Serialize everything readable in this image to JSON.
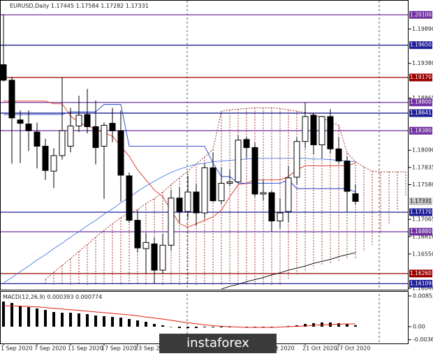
{
  "chart_data": {
    "type": "candlestick",
    "symbol": "EURUSD,Daily",
    "categories": [
      "1 Sep 2020",
      null,
      null,
      null,
      "7 Sep 2020",
      null,
      null,
      null,
      "11 Sep 2020",
      null,
      null,
      null,
      "17 Sep 2020",
      null,
      null,
      null,
      "23 Sep 2020",
      null,
      null,
      null,
      null,
      null,
      null,
      null,
      null,
      null,
      null,
      null,
      null,
      null,
      null,
      null,
      "Oct 2020",
      null,
      null,
      null,
      "21 Oct 2020",
      null,
      null,
      null,
      "27 Oct 2020",
      null,
      null
    ],
    "open": [
      1.1936,
      1.1913,
      1.1854,
      1.1848,
      1.1836,
      1.1815,
      1.1778,
      1.1801,
      1.1815,
      1.1845,
      1.1862,
      1.1844,
      1.1815,
      1.1849,
      1.1838,
      1.1771,
      1.1705,
      1.1663,
      1.167,
      1.1631,
      1.1668,
      1.1738,
      1.1718,
      1.1747,
      1.1716,
      1.1783,
      1.1734,
      1.176,
      1.1762,
      1.1825,
      1.1813,
      1.1744,
      1.1746,
      1.1704,
      1.1718,
      1.1769,
      1.1822,
      1.1861,
      1.1817,
      1.1859,
      1.1811,
      1.1793,
      1.17445
    ],
    "high": [
      1.2011,
      1.1918,
      1.1868,
      1.1868,
      1.185,
      1.1826,
      1.1812,
      1.1917,
      1.1872,
      1.189,
      1.19,
      1.1883,
      1.185,
      1.1872,
      1.1868,
      1.1776,
      1.172,
      1.1686,
      1.168,
      1.1685,
      1.175,
      1.1754,
      1.1771,
      1.1759,
      1.179,
      1.1806,
      1.1784,
      1.178,
      1.1831,
      1.1829,
      1.182,
      1.1765,
      1.1749,
      1.1738,
      1.1786,
      1.1828,
      1.188,
      1.1864,
      1.186,
      1.187,
      1.1828,
      1.18,
      1.17584
    ],
    "low": [
      1.1911,
      1.1789,
      1.179,
      1.1808,
      1.1782,
      1.1765,
      1.1753,
      1.1795,
      1.1806,
      1.1836,
      1.1834,
      1.1788,
      1.1737,
      1.1821,
      1.1733,
      1.1701,
      1.1657,
      1.1626,
      1.1612,
      1.1625,
      1.166,
      1.1702,
      1.1708,
      1.1696,
      1.1708,
      1.1732,
      1.1729,
      1.1756,
      1.176,
      1.1797,
      1.174,
      1.1735,
      1.1688,
      1.1693,
      1.1702,
      1.1758,
      1.1812,
      1.1803,
      1.1797,
      1.1805,
      1.1789,
      1.1718,
      1.17282
    ],
    "close": [
      1.1913,
      1.1857,
      1.1849,
      1.1838,
      1.1815,
      1.1779,
      1.1801,
      1.1838,
      1.1845,
      1.1861,
      1.1844,
      1.1813,
      1.1846,
      1.1838,
      1.1772,
      1.1705,
      1.1664,
      1.1672,
      1.1631,
      1.1668,
      1.1738,
      1.1718,
      1.1747,
      1.1716,
      1.1783,
      1.1734,
      1.176,
      1.1762,
      1.1824,
      1.1813,
      1.1744,
      1.1746,
      1.1704,
      1.1716,
      1.1768,
      1.1822,
      1.1859,
      1.1817,
      1.1859,
      1.1811,
      1.1793,
      1.1748,
      1.17331
    ],
    "up_color": "#ffffff",
    "down_color": "#000000",
    "ylim": [
      1.1602,
      1.2031
    ],
    "yticks": [
      {
        "value": 1.1989,
        "label": "1.19890"
      },
      {
        "value": 1.1938,
        "label": "1.19380"
      },
      {
        "value": 1.18865,
        "label": "1.18865"
      },
      {
        "value": 1.1809,
        "label": "1.18090"
      },
      {
        "value": 1.17835,
        "label": "1.17835"
      },
      {
        "value": 1.1758,
        "label": "1.17580"
      },
      {
        "value": 1.17065,
        "label": "1.17065"
      },
      {
        "value": 1.1681,
        "label": "1.16810"
      },
      {
        "value": 1.1655,
        "label": "1.16550"
      },
      {
        "value": 1.1604,
        "label": "1.16040"
      }
    ],
    "levels": [
      {
        "value": 1.201,
        "label": "1.20100",
        "color": "#7030a0"
      },
      {
        "value": 1.1965,
        "label": "1.19650",
        "color": "#1f1f9a"
      },
      {
        "value": 1.1917,
        "label": "1.19170",
        "color": "#9a0000"
      },
      {
        "value": 1.188,
        "label": "1.18800",
        "color": "#7030a0"
      },
      {
        "value": 1.18641,
        "label": "1.18641",
        "color": "#1f1f9a"
      },
      {
        "value": 1.1838,
        "label": "1.18380",
        "color": "#7030a0"
      },
      {
        "value": 1.1717,
        "label": "1.17170",
        "color": "#1f1f9a"
      },
      {
        "value": 1.1688,
        "label": "1.16880",
        "color": "#7030a0"
      },
      {
        "value": 1.1626,
        "label": "1.16260",
        "color": "#9a0000"
      },
      {
        "value": 1.16109,
        "label": "1.16109",
        "color": "#1f1f9a"
      }
    ],
    "lines": [
      {
        "color": "#e03020",
        "values": [
          1.1882,
          1.1882,
          1.1882,
          1.1882,
          1.1882,
          1.1882,
          1.1878,
          1.1878,
          1.186,
          1.185,
          1.1845,
          1.184,
          1.1835,
          1.183,
          1.1815,
          1.18,
          1.178,
          1.1765,
          1.175,
          1.174,
          1.172,
          1.17,
          1.1695,
          1.17,
          1.1705,
          1.171,
          1.172,
          1.174,
          1.1758,
          1.176,
          1.1765,
          1.1765,
          1.1765,
          1.1765,
          1.177,
          1.178,
          1.1786,
          1.1786,
          1.1786,
          1.1786,
          1.1786,
          1.1786,
          1.179
        ]
      },
      {
        "color": "#2040d0",
        "values": [
          1.1862,
          1.1862,
          1.1862,
          1.1862,
          1.1862,
          1.1862,
          1.1862,
          1.1862,
          1.1866,
          1.1866,
          1.1866,
          1.1866,
          1.1877,
          1.1877,
          1.1877,
          1.1815,
          1.1815,
          1.1815,
          1.1815,
          1.1815,
          1.1815,
          1.1815,
          1.1815,
          1.1815,
          1.1815,
          1.179,
          1.177,
          1.177,
          1.176,
          1.176,
          1.176,
          1.176,
          1.176,
          1.176,
          1.1765,
          1.1752,
          1.1752,
          1.1752,
          1.1752,
          1.1752,
          1.1752,
          1.1752,
          1.1747
        ]
      },
      {
        "color": "#4a78e8",
        "values": [
          1.1612,
          1.162,
          1.1629,
          1.1637,
          1.1646,
          1.1654,
          1.1663,
          1.1671,
          1.168,
          1.1688,
          1.1697,
          1.1705,
          1.1714,
          1.1722,
          1.1731,
          1.1739,
          1.1748,
          1.1756,
          1.1763,
          1.177,
          1.1776,
          1.1781,
          1.1785,
          1.1788,
          1.179,
          1.1792,
          1.1793,
          1.1794,
          1.1795,
          1.1796,
          1.1797,
          1.1797,
          1.1797,
          1.1797,
          1.1797,
          1.1797,
          1.1797,
          1.1796,
          1.1796,
          1.1795,
          1.1794,
          1.1793,
          1.1792
        ]
      },
      {
        "color": "#000000",
        "values": [
          null,
          null,
          null,
          null,
          null,
          null,
          null,
          null,
          null,
          null,
          null,
          null,
          null,
          null,
          null,
          null,
          null,
          null,
          null,
          null,
          null,
          null,
          null,
          null,
          null,
          null,
          1.1603,
          1.1607,
          1.161,
          1.1614,
          1.1617,
          1.162,
          1.1624,
          1.1627,
          1.1631,
          1.1634,
          1.1637,
          1.1641,
          1.1644,
          1.1647,
          1.1651,
          1.1654,
          1.1657
        ]
      }
    ],
    "cloud": {
      "color": "#a0302a",
      "top": [
        null,
        null,
        null,
        null,
        null,
        1.1617,
        1.1628,
        1.1638,
        1.1648,
        1.1659,
        1.1669,
        1.168,
        1.169,
        1.17,
        1.1709,
        1.1716,
        1.1721,
        1.173,
        1.1737,
        1.1747,
        1.1758,
        1.1768,
        1.1778,
        1.1789,
        1.1799,
        1.181,
        1.1867,
        1.1869,
        1.187,
        1.1871,
        1.1872,
        1.1872,
        1.1872,
        1.1871,
        1.1869,
        1.1867,
        1.1865,
        1.1862,
        1.1857,
        1.1851,
        1.1846,
        1.1805,
        1.1792,
        1.1784,
        1.1778,
        1.1777,
        1.1777,
        1.1777,
        1.1777
      ],
      "bottom": [
        null,
        null,
        null,
        null,
        null,
        1.1609,
        1.1609,
        1.1609,
        1.1609,
        1.1609,
        1.1609,
        1.1609,
        1.1609,
        1.1609,
        1.1609,
        1.1609,
        1.1609,
        1.1609,
        1.1609,
        1.1609,
        1.1609,
        1.1609,
        1.1609,
        1.1609,
        1.1609,
        1.1609,
        1.1609,
        1.1609,
        1.1609,
        1.1609,
        1.1609,
        1.1609,
        1.1609,
        1.1609,
        1.1617,
        1.1623,
        1.1628,
        1.1633,
        1.1638,
        1.164,
        1.1643,
        1.1647,
        1.1648,
        1.1659,
        1.1669,
        1.1685,
        1.17,
        1.1721,
        1.1742
      ]
    },
    "macd": {
      "label": "MACD(12,26,9)",
      "ylim": [
        -0.00465,
        0.00969
      ],
      "yticks": [
        0.008524,
        {
          "value": 0,
          "label": "0.00"
        },
        -0.003624
      ],
      "histogram": {
        "color": "#000000",
        "values": [
          0.00697,
          0.00659,
          0.00581,
          0.00542,
          0.00504,
          0.00465,
          0.00407,
          0.00387,
          0.00387,
          0.00368,
          0.00349,
          0.0031,
          0.00291,
          0.00271,
          0.00252,
          0.00213,
          0.00174,
          0.00136,
          0.00077,
          0.00039,
          0,
          -0.00039,
          -0.00039,
          -0.00039,
          -0.00019,
          -0.00019,
          -0.00019,
          -0.00019,
          0,
          0,
          0,
          0,
          -0.00019,
          0,
          0.00019,
          0.00039,
          0.00077,
          0.00097,
          0.00116,
          0.00116,
          0.00097,
          0.00077,
          0.000393
        ]
      },
      "signal": {
        "color": "#e02010",
        "values": [
          0.0058,
          0.0058,
          0.0057,
          0.0056,
          0.0055,
          0.0053,
          0.0051,
          0.0049,
          0.0047,
          0.0045,
          0.0043,
          0.0041,
          0.0039,
          0.0037,
          0.0035,
          0.0033,
          0.003,
          0.0027,
          0.0024,
          0.0021,
          0.0018,
          0.0014,
          0.0011,
          0.0008,
          0.0005,
          0.0003,
          0.0001,
          0,
          -0.0001,
          -0.0002,
          -0.0002,
          -0.0002,
          -0.0002,
          -0.0001,
          0,
          0.0001,
          0.0002,
          0.0004,
          0.0005,
          0.0006,
          0.0007,
          0.00075,
          0.000774
        ]
      }
    },
    "watermark": "instaforex"
  }
}
